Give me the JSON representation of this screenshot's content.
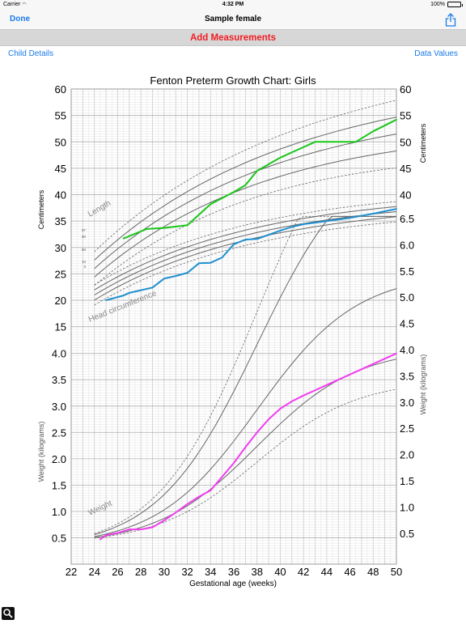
{
  "status": {
    "carrier": "Carrier",
    "time": "4:32 PM",
    "battery": "100%",
    "wifi_icon": "wifi-icon"
  },
  "nav": {
    "done": "Done",
    "title": "Sample female",
    "share_icon": "share-icon"
  },
  "action": {
    "add": "Add Measurements"
  },
  "toolbar": {
    "child_details": "Child Details",
    "data_values": "Data Values"
  },
  "zoom_icon": "magnifier-icon",
  "colors": {
    "accent": "#1a7ae8",
    "add": "#f21d24",
    "length": "#19c619",
    "head": "#1e8fcf",
    "weight": "#f03ef0",
    "curve": "#666666"
  },
  "chart_data": {
    "type": "line",
    "title": "Fenton Preterm Growth Chart: Girls",
    "xlabel": "Gestational age (weeks)",
    "xlim": [
      22,
      50
    ],
    "xticks": [
      "22",
      "24",
      "26",
      "28",
      "30",
      "32",
      "34",
      "36",
      "38",
      "40",
      "42",
      "44",
      "46",
      "48",
      "50"
    ],
    "left_upper_ticks": [
      "60",
      "55",
      "50",
      "45",
      "40",
      "35",
      "30",
      "25",
      "20",
      "15"
    ],
    "left_lower_ticks": [
      "4.0",
      "3.5",
      "3.0",
      "2.5",
      "2.0",
      "1.5",
      "1.0",
      "0.5"
    ],
    "right_cm_ticks": [
      "60",
      "55",
      "50",
      "45",
      "40"
    ],
    "right_kg_ticks": [
      "6.5",
      "6.0",
      "5.5",
      "5.0",
      "4.5",
      "4.0",
      "3.5",
      "3.0",
      "2.5",
      "2.0",
      "1.5",
      "1.0",
      "0.5"
    ],
    "ylabel_cm_left": "Centimeters",
    "ylabel_cm_right": "Centimeters",
    "ylabel_kg_left": "Weight (kilograms)",
    "ylabel_kg_right": "Weight (kilograms)",
    "curve_labels": {
      "length": "Length",
      "head": "Head circumference",
      "weight": "Weight"
    },
    "percentiles": [
      "97",
      "90",
      "50",
      "10",
      "3"
    ],
    "series": [
      {
        "name": "Length",
        "unit": "cm",
        "x": [
          26.5,
          28.5,
          30,
          32,
          34,
          36,
          37,
          38,
          40,
          41.5,
          43,
          45,
          46.5,
          48,
          50
        ],
        "values": [
          31.7,
          33.5,
          33.7,
          34.2,
          38.2,
          40.5,
          41.8,
          44.5,
          47,
          48.5,
          50,
          50,
          50,
          52,
          54.2
        ]
      },
      {
        "name": "Head circumference",
        "unit": "cm",
        "x": [
          25,
          25.5,
          26.5,
          27,
          28,
          29,
          30,
          31,
          32,
          33,
          34,
          35,
          36,
          37,
          38,
          39,
          40,
          41,
          42,
          44,
          46,
          48,
          50
        ],
        "values": [
          20,
          20.3,
          20.9,
          21.4,
          21.9,
          22.4,
          24.1,
          24.6,
          25.2,
          27,
          27.1,
          28.1,
          30.6,
          31.5,
          31.6,
          32.4,
          33.2,
          33.9,
          34.4,
          35,
          35.6,
          36.4,
          37.3
        ]
      },
      {
        "name": "Weight",
        "unit": "kg",
        "x": [
          24.5,
          25,
          26,
          27,
          28,
          29,
          30,
          31,
          32,
          33,
          34,
          35,
          36,
          37,
          38,
          39,
          40,
          41,
          42,
          44,
          46,
          48,
          50
        ],
        "values": [
          0.47,
          0.55,
          0.59,
          0.66,
          0.66,
          0.7,
          0.83,
          0.98,
          1.14,
          1.28,
          1.4,
          1.66,
          1.92,
          2.22,
          2.5,
          2.75,
          2.95,
          3.09,
          3.2,
          3.4,
          3.6,
          3.8,
          4.0
        ]
      }
    ]
  }
}
